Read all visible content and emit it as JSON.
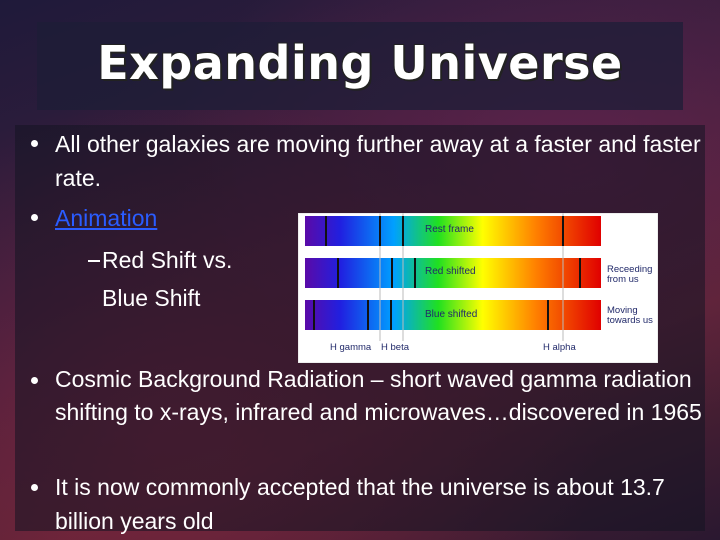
{
  "title": "Expanding Universe",
  "bullets": [
    {
      "text": "All other galaxies are moving further away at a faster and faster rate."
    },
    {
      "text": "Animation",
      "sub": [
        "Red Shift vs. Blue Shift"
      ]
    },
    {
      "text": "Cosmic Background Radiation – short waved gamma radiation shifting to x-rays, infrared and microwaves…discovered in 1965"
    },
    {
      "text": "It is now commonly accepted that the universe is about 13.7 billion years old"
    }
  ],
  "figure": {
    "rows": [
      {
        "label": "Rest frame"
      },
      {
        "label": "Red shifted",
        "note": "Receeding from us"
      },
      {
        "label": "Blue shifted",
        "note": "Moving towards us"
      }
    ],
    "axis": [
      "H gamma",
      "H beta",
      "H alpha"
    ]
  }
}
